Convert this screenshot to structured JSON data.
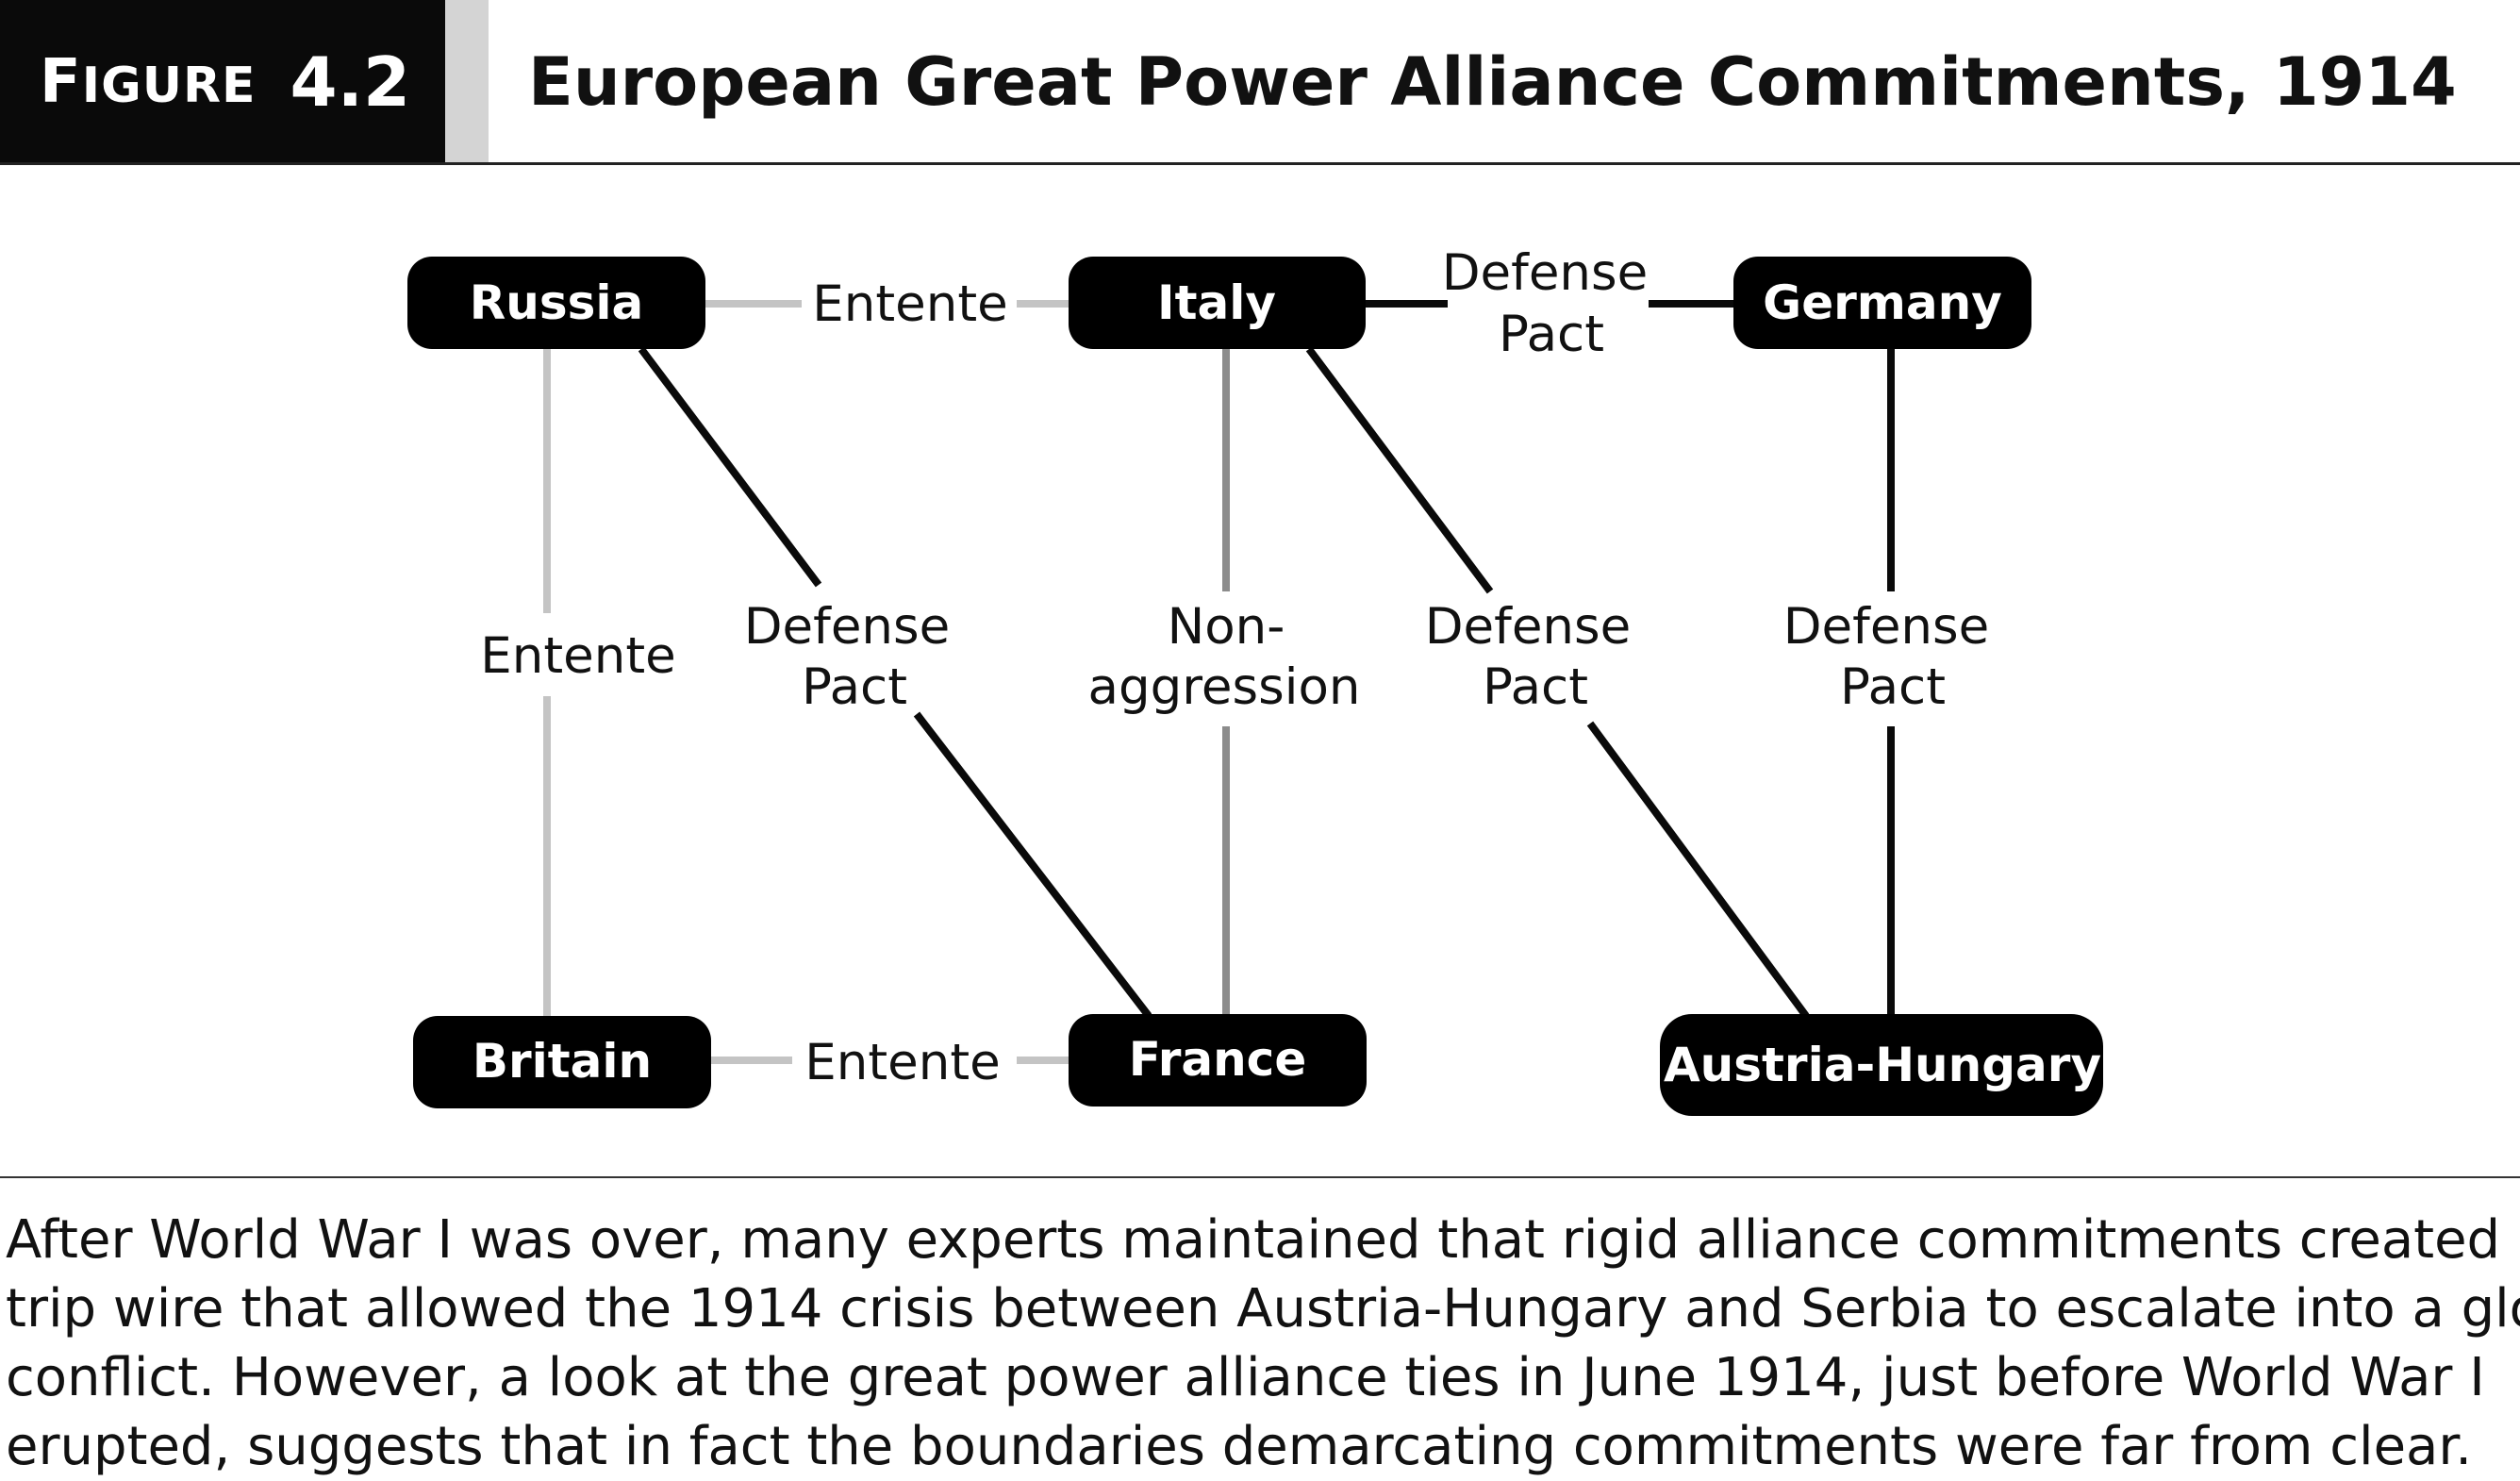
{
  "figure": {
    "label_word_first": "F",
    "label_word_rest": "IGURE",
    "label_number": "4.2",
    "title": "European Great Power Alliance Commitments, 1914"
  },
  "nodes": {
    "russia": "Russia",
    "italy": "Italy",
    "germany": "Germany",
    "britain": "Britain",
    "france": "France",
    "austria": "Austria-Hungary"
  },
  "edges": {
    "russia_italy": [
      "Entente"
    ],
    "italy_germany": [
      "Defense",
      "Pact"
    ],
    "russia_britain": [
      "Entente"
    ],
    "russia_france": [
      "Defense",
      "Pact"
    ],
    "italy_france": [
      "Non-",
      "aggression"
    ],
    "italy_austria": [
      "Defense",
      "Pact"
    ],
    "germany_austria": [
      "Defense",
      "Pact"
    ],
    "britain_france": [
      "Entente"
    ]
  },
  "colors": {
    "entente": "#c4c4c4",
    "defense_pact": "#0a0a0a",
    "non_aggression": "#8c8c8c"
  },
  "caption": [
    "After World War I was over, many experts maintained that rigid alliance commitments created a",
    "trip wire that allowed the 1914 crisis between Austria-Hungary and Serbia to escalate into a global",
    "conflict. However, a look at the great power alliance ties in June 1914, just before World War I",
    "erupted, suggests that in fact the boundaries demarcating commitments were far from clear."
  ]
}
